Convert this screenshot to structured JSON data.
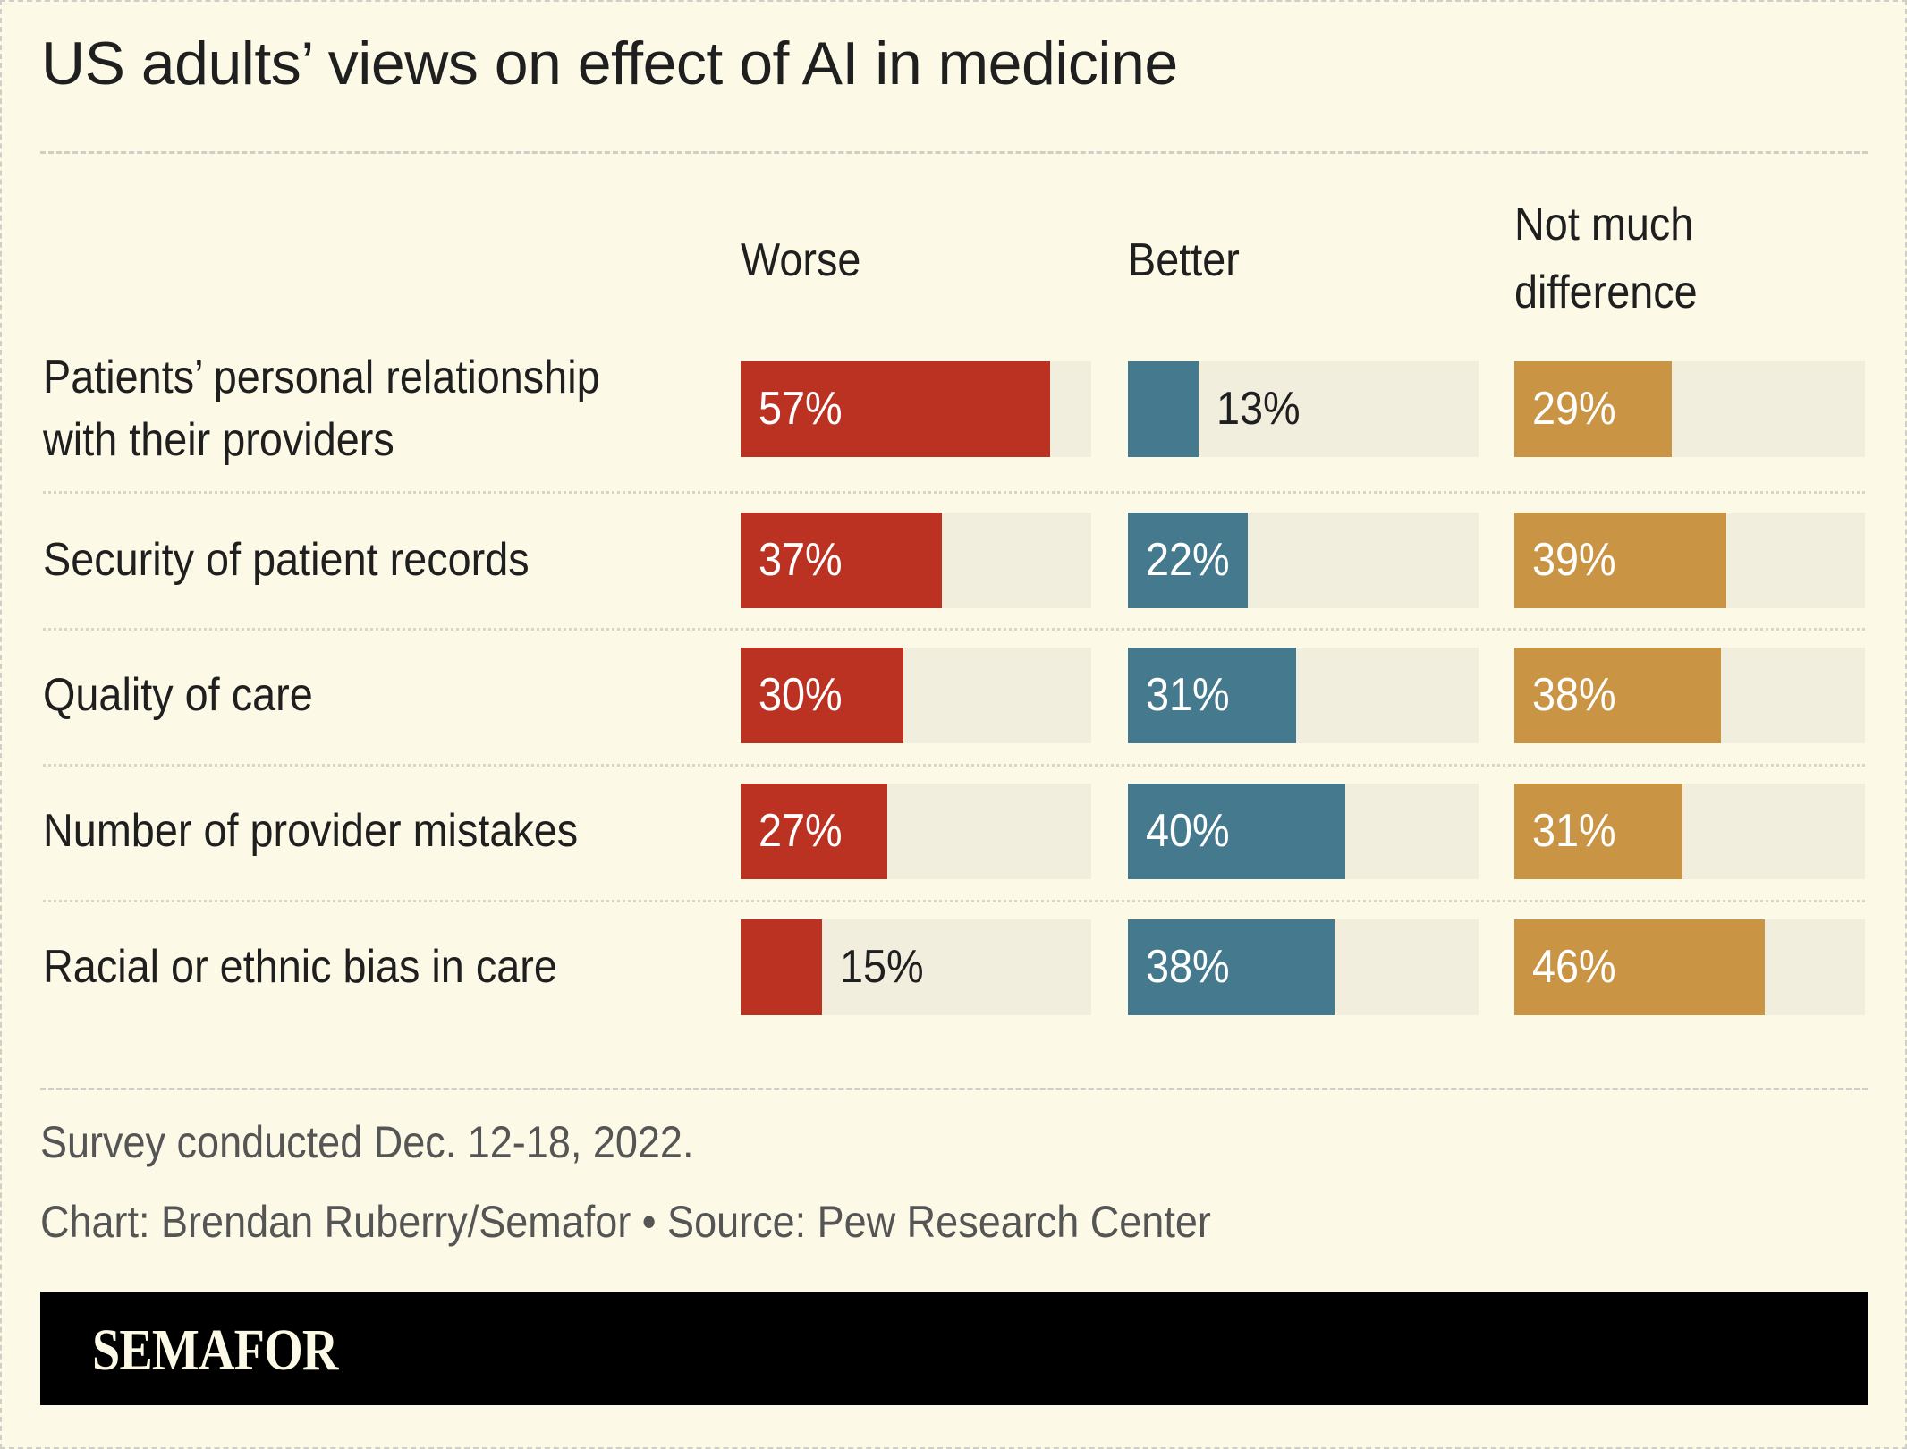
{
  "chart_data": {
    "type": "bar",
    "title": "US adults’ views on effect of AI in medicine",
    "categories": [
      [
        "Patients’ personal relationship",
        "with their providers"
      ],
      [
        "Security of patient records"
      ],
      [
        "Quality of care"
      ],
      [
        "Number of provider mistakes"
      ],
      [
        "Racial or ethnic bias in care"
      ]
    ],
    "series": [
      {
        "name": "Worse",
        "values": [
          57,
          37,
          30,
          27,
          15
        ],
        "color": "#BC3222"
      },
      {
        "name": "Better",
        "values": [
          13,
          22,
          31,
          40,
          38
        ],
        "color": "#457A8E"
      },
      {
        "name": "Not much difference",
        "name_lines": [
          "Not much",
          "difference"
        ],
        "values": [
          29,
          39,
          38,
          31,
          46
        ],
        "color": "#C99544"
      }
    ],
    "value_suffix": "%",
    "track_color": "#F1EEDD",
    "xlim": [
      0,
      64.5
    ],
    "grid": false
  },
  "notes": {
    "survey": "Survey conducted Dec. 12-18, 2022.",
    "credit": "Chart: Brendan Ruberry/Semafor • Source: Pew Research Center"
  },
  "brand": {
    "logo": "SEMAFOR"
  }
}
